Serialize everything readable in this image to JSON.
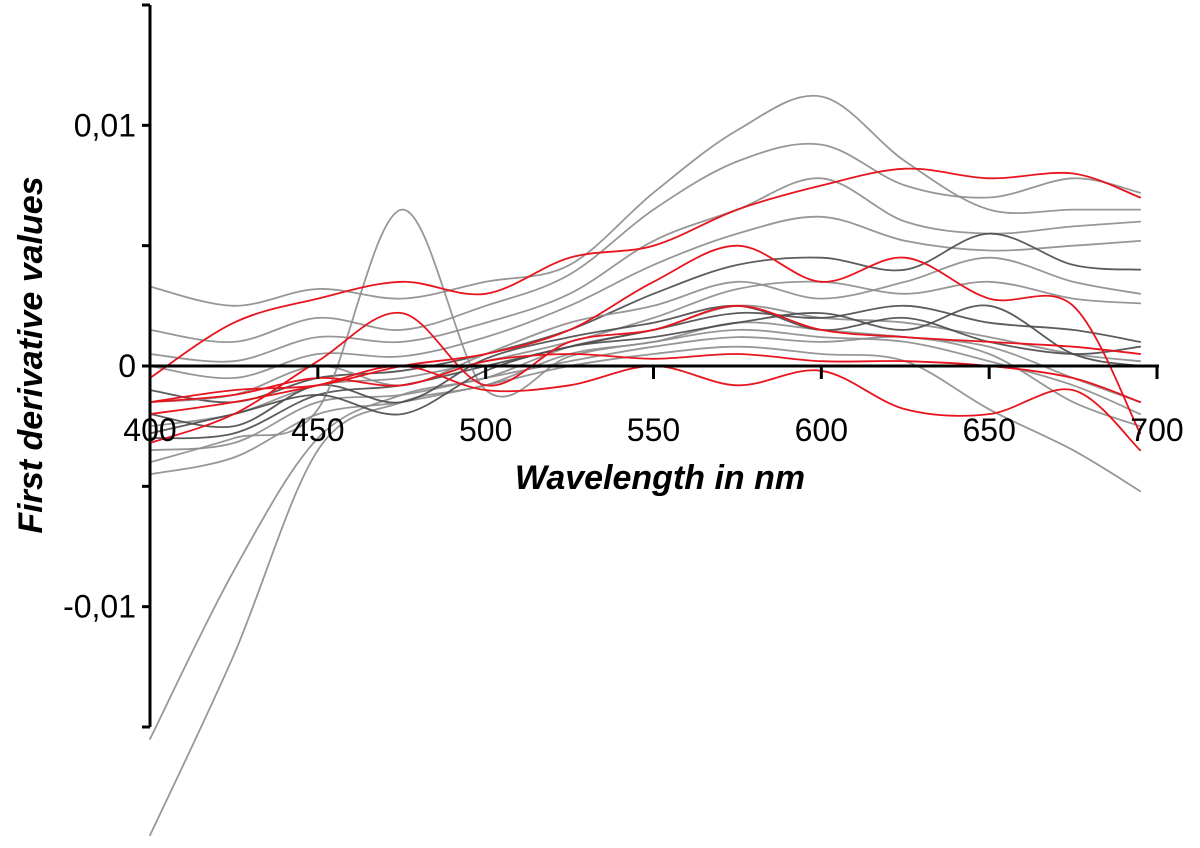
{
  "chart_data": {
    "type": "line",
    "title": "",
    "xlabel": "Wavelength in nm",
    "ylabel": "First derivative values",
    "xlim": [
      400,
      700
    ],
    "ylim": [
      -0.015,
      0.015
    ],
    "x_ticks": [
      400,
      450,
      500,
      550,
      600,
      650,
      700
    ],
    "x_tick_labels": [
      "400",
      "450",
      "500",
      "550",
      "600",
      "650",
      "700"
    ],
    "y_ticks": [
      -0.01,
      0,
      0.01
    ],
    "y_tick_labels": [
      "-0,01",
      "0",
      "0,01"
    ],
    "grid": false,
    "legend": "none",
    "colors": {
      "gray": "#8c8c8c",
      "dark": "#4a4a4a",
      "red": "#e8141e"
    },
    "x": [
      400,
      425,
      450,
      475,
      500,
      525,
      550,
      575,
      600,
      625,
      650,
      675,
      695
    ],
    "series": [
      {
        "color": "gray",
        "values": [
          -0.0155,
          -0.0085,
          -0.003,
          -0.0012,
          -0.0005,
          0.0008,
          0.0015,
          0.0025,
          0.002,
          0.0018,
          0.0012,
          0.0005,
          0.0002
        ]
      },
      {
        "color": "gray",
        "values": [
          -0.0195,
          -0.012,
          -0.0035,
          -0.0015,
          -0.0008,
          0.0005,
          0.001,
          0.0018,
          0.0015,
          0.0012,
          0.0008,
          -0.0005,
          -0.0015
        ]
      },
      {
        "color": "gray",
        "values": [
          0.0033,
          0.0025,
          0.0032,
          0.0028,
          0.0035,
          0.0042,
          0.0072,
          0.0098,
          0.0112,
          0.0085,
          0.0065,
          0.0065,
          0.0065
        ]
      },
      {
        "color": "gray",
        "values": [
          0.0015,
          0.001,
          0.002,
          0.0015,
          0.0025,
          0.0038,
          0.0065,
          0.0085,
          0.0092,
          0.0075,
          0.007,
          0.0078,
          0.0072
        ]
      },
      {
        "color": "gray",
        "values": [
          0.0005,
          0.0002,
          0.0012,
          0.001,
          0.0018,
          0.003,
          0.0052,
          0.0065,
          0.0078,
          0.006,
          0.0055,
          0.0058,
          0.006
        ]
      },
      {
        "color": "gray",
        "values": [
          0.0,
          -0.0005,
          0.0005,
          0.0004,
          0.0012,
          0.0025,
          0.0042,
          0.0055,
          0.0062,
          0.0052,
          0.0048,
          0.005,
          0.0052
        ]
      },
      {
        "color": "dark",
        "values": [
          -0.001,
          -0.0015,
          -0.0005,
          -0.0002,
          0.0005,
          0.0015,
          0.003,
          0.0042,
          0.0045,
          0.004,
          0.0055,
          0.0042,
          0.004
        ]
      },
      {
        "color": "gray",
        "values": [
          -0.0025,
          -0.002,
          -0.0008,
          -0.0005,
          0.0002,
          0.001,
          0.002,
          0.0032,
          0.0035,
          0.003,
          0.0035,
          0.0028,
          0.0026
        ]
      },
      {
        "color": "dark",
        "values": [
          -0.003,
          -0.0028,
          -0.0012,
          -0.0008,
          0.0,
          0.0008,
          0.0015,
          0.0022,
          0.002,
          0.0025,
          0.0018,
          0.0015,
          0.001
        ]
      },
      {
        "color": "gray",
        "values": [
          -0.0035,
          -0.0032,
          -0.0015,
          -0.0012,
          -0.0005,
          0.0002,
          0.0008,
          0.0012,
          0.001,
          0.0012,
          0.0005,
          -0.0015,
          -0.0025
        ]
      },
      {
        "color": "gray",
        "values": [
          -0.0045,
          -0.0038,
          -0.002,
          -0.0015,
          -0.0008,
          0.0,
          0.0005,
          0.0008,
          0.0005,
          0.0002,
          -0.0018,
          -0.0035,
          -0.0052
        ]
      },
      {
        "color": "dark",
        "values": [
          -0.002,
          -0.0025,
          -0.0008,
          -0.0015,
          0.0003,
          0.0012,
          0.0018,
          0.0025,
          0.0015,
          0.002,
          0.001,
          0.0005,
          0.0008
        ]
      },
      {
        "color": "gray",
        "values": [
          -0.0015,
          -0.0012,
          0.0,
          -0.0008,
          0.0005,
          0.0018,
          0.0025,
          0.0035,
          0.0028,
          0.0035,
          0.0045,
          0.0035,
          0.003
        ]
      },
      {
        "color": "gray",
        "values": [
          -0.004,
          -0.003,
          -0.0018,
          0.0065,
          -0.001,
          0.0004,
          0.001,
          0.0015,
          0.0012,
          0.001,
          0.0002,
          -0.0008,
          -0.002
        ]
      },
      {
        "color": "dark",
        "values": [
          -0.0028,
          -0.002,
          -0.0012,
          -0.002,
          -0.0002,
          0.0008,
          0.0012,
          0.0018,
          0.0022,
          0.0015,
          0.0025,
          0.0005,
          0.0
        ]
      },
      {
        "color": "red",
        "values": [
          -0.0005,
          0.0018,
          0.0028,
          0.0035,
          0.003,
          0.0045,
          0.005,
          0.0065,
          0.0075,
          0.0082,
          0.0078,
          0.008,
          0.007
        ]
      },
      {
        "color": "red",
        "values": [
          -0.0015,
          -0.001,
          -0.0008,
          0.0,
          0.0005,
          0.0015,
          0.0035,
          0.005,
          0.0035,
          0.0045,
          0.0028,
          0.0025,
          -0.0028
        ]
      },
      {
        "color": "red",
        "values": [
          -0.0032,
          -0.002,
          0.0002,
          0.0022,
          -0.0008,
          0.001,
          0.0015,
          0.0025,
          0.0015,
          0.0012,
          0.001,
          0.0008,
          0.0005
        ]
      },
      {
        "color": "red",
        "values": [
          -0.0015,
          -0.0012,
          -0.0005,
          -0.0008,
          0.0002,
          0.0005,
          0.0003,
          0.0005,
          0.0002,
          0.0002,
          0.0,
          -0.0005,
          -0.0015
        ]
      },
      {
        "color": "red",
        "values": [
          -0.002,
          -0.0015,
          -0.0008,
          0.0,
          -0.001,
          -0.0008,
          0.0,
          -0.0008,
          -0.0002,
          -0.0018,
          -0.002,
          -0.001,
          -0.0035
        ]
      }
    ]
  }
}
